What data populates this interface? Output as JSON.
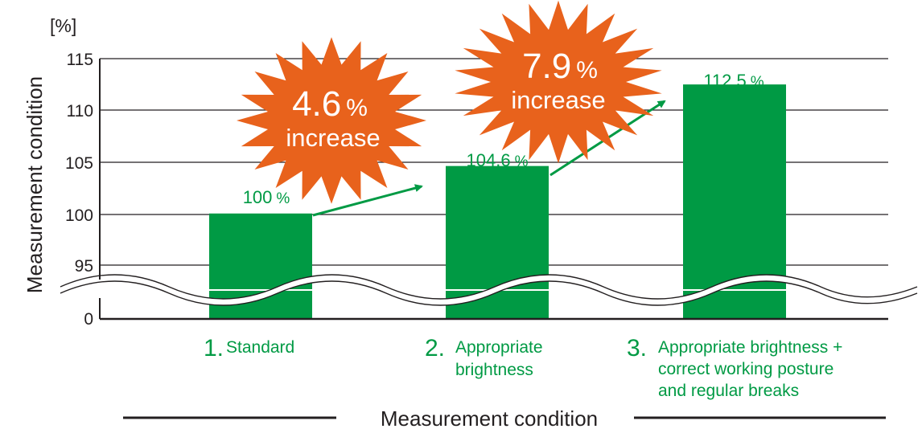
{
  "chart_data": {
    "type": "bar",
    "unit_label": "[%]",
    "ylabel": "Measurement condition",
    "xlabel": "Measurement condition",
    "yticks": [
      "115",
      "110",
      "105",
      "100",
      "95",
      "0"
    ],
    "axis_break": true,
    "ylim": [
      93,
      115
    ],
    "grid": true,
    "categories": [
      {
        "num": "1.",
        "lines": [
          "Standard"
        ]
      },
      {
        "num": "2.",
        "lines": [
          "Appropriate",
          "brightness"
        ]
      },
      {
        "num": "3.",
        "lines": [
          "Appropriate brightness +",
          "correct working posture",
          "and regular breaks"
        ]
      }
    ],
    "values": [
      100,
      104.6,
      112.5
    ],
    "value_labels": [
      {
        "num": "100",
        "unit": "%"
      },
      {
        "num": "104.6",
        "unit": "%"
      },
      {
        "num": "112.5",
        "unit": "%"
      }
    ],
    "callouts": [
      {
        "num": "4.6",
        "unit": "%",
        "text": "increase"
      },
      {
        "num": "7.9",
        "unit": "%",
        "text": "increase"
      }
    ],
    "colors": {
      "bar": "#009a44",
      "arrow": "#009a44",
      "burst": "#e8621c",
      "label": "#009a44",
      "axis": "#231f20"
    }
  }
}
